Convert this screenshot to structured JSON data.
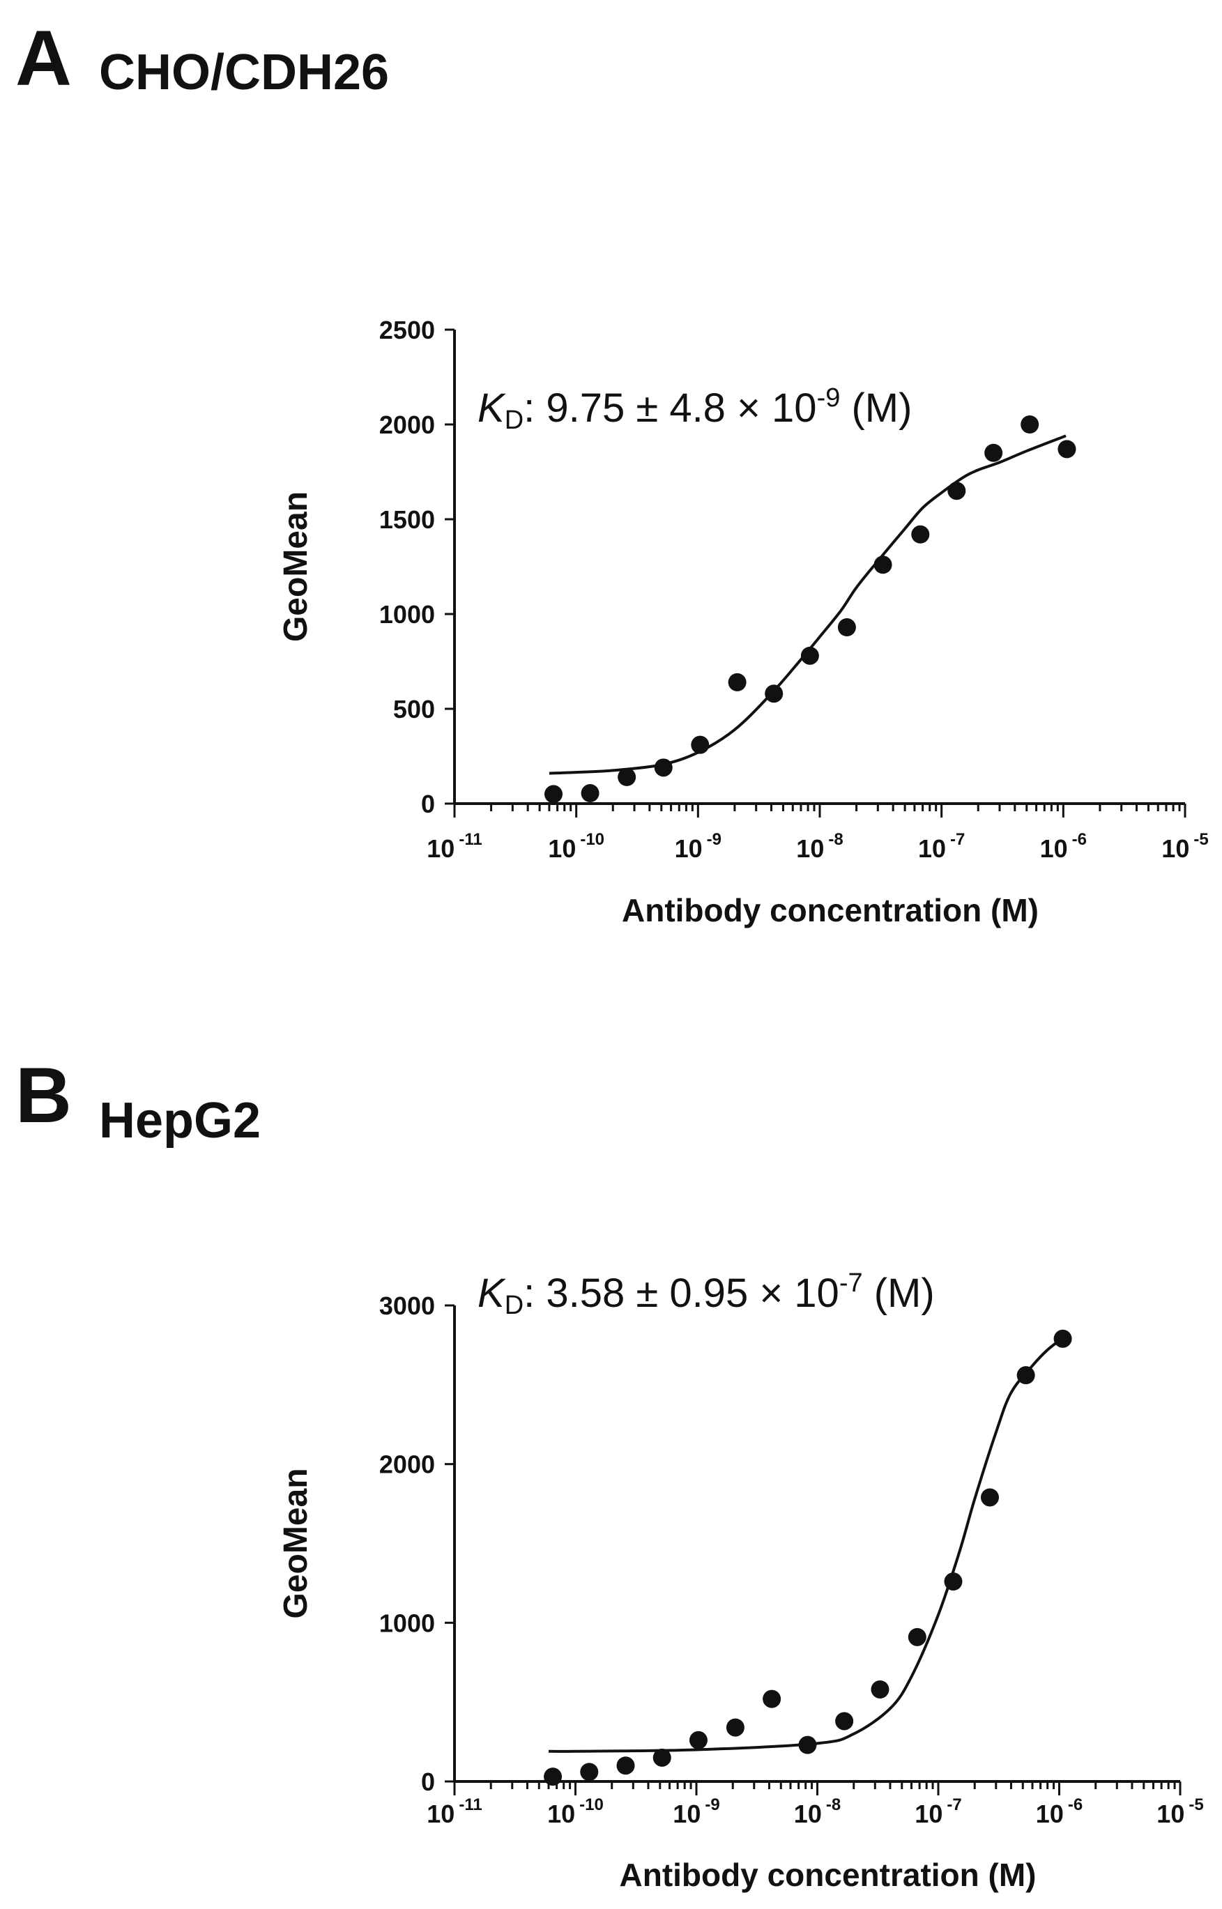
{
  "figure": {
    "panels": [
      {
        "letter": "A",
        "title": "CHO/CDH26",
        "kd": {
          "symbol": "K",
          "subscript": "D",
          "value": ": 9.75 ± 4.8 × 10",
          "exponent": "-9",
          "unit": " (M)"
        }
      },
      {
        "letter": "B",
        "title": "HepG2",
        "kd": {
          "symbol": "K",
          "subscript": "D",
          "value": ": 3.58 ± 0.95 × 10",
          "exponent": "-7",
          "unit": " (M)"
        }
      }
    ]
  },
  "chart_data": [
    {
      "type": "scatter",
      "title": "CHO/CDH26",
      "xlabel": "Antibody concentration (M)",
      "ylabel": "GeoMean",
      "xscale": "log",
      "xlim": [
        1e-11,
        1e-05
      ],
      "ylim": [
        0,
        2500
      ],
      "xticks": [
        {
          "base": "10",
          "exp": "-11"
        },
        {
          "base": "10",
          "exp": "-10"
        },
        {
          "base": "10",
          "exp": "-9"
        },
        {
          "base": "10",
          "exp": "-8"
        },
        {
          "base": "10",
          "exp": "-7"
        },
        {
          "base": "10",
          "exp": "-6"
        },
        {
          "base": "10",
          "exp": "-5"
        }
      ],
      "yticks": [
        0,
        500,
        1000,
        1500,
        2000,
        2500
      ],
      "grid": false,
      "series": [
        {
          "x": [
            6.5e-11,
            1.3e-10,
            2.6e-10,
            5.2e-10,
            1.04e-09,
            2.1e-09,
            4.2e-09,
            8.3e-09,
            1.67e-08,
            3.3e-08,
            6.7e-08,
            1.33e-07,
            2.67e-07,
            5.3e-07,
            1.07e-06
          ],
          "y": [
            50,
            55,
            140,
            190,
            310,
            640,
            580,
            780,
            930,
            1260,
            1420,
            1650,
            1850,
            2000,
            1870
          ]
        }
      ],
      "fit": {
        "x": [
          6e-11,
          1e-10,
          2e-10,
          5e-10,
          1e-09,
          2e-09,
          4e-09,
          7e-09,
          1e-08,
          1.5e-08,
          2e-08,
          3e-08,
          5e-08,
          7e-08,
          1e-07,
          1.5e-07,
          2e-07,
          3e-07,
          5e-07,
          1.05e-06
        ],
        "y": [
          160,
          165,
          175,
          205,
          270,
          390,
          580,
          760,
          880,
          1020,
          1140,
          1280,
          1450,
          1560,
          1640,
          1720,
          1760,
          1800,
          1860,
          1940
        ]
      }
    },
    {
      "type": "scatter",
      "title": "HepG2",
      "xlabel": "Antibody concentration (M)",
      "ylabel": "GeoMean",
      "xscale": "log",
      "xlim": [
        1e-11,
        1e-05
      ],
      "ylim": [
        0,
        3000
      ],
      "xticks": [
        {
          "base": "10",
          "exp": "-11"
        },
        {
          "base": "10",
          "exp": "-10"
        },
        {
          "base": "10",
          "exp": "-9"
        },
        {
          "base": "10",
          "exp": "-8"
        },
        {
          "base": "10",
          "exp": "-7"
        },
        {
          "base": "10",
          "exp": "-6"
        },
        {
          "base": "10",
          "exp": "-5"
        }
      ],
      "yticks": [
        0,
        1000,
        2000,
        3000
      ],
      "grid": false,
      "series": [
        {
          "x": [
            6.5e-11,
            1.3e-10,
            2.6e-10,
            5.2e-10,
            1.04e-09,
            2.1e-09,
            4.2e-09,
            8.3e-09,
            1.67e-08,
            3.3e-08,
            6.7e-08,
            1.33e-07,
            2.67e-07,
            5.3e-07,
            1.07e-06
          ],
          "y": [
            30,
            60,
            100,
            150,
            260,
            340,
            520,
            230,
            380,
            580,
            910,
            1260,
            1790,
            2560,
            2790
          ]
        }
      ],
      "fit": {
        "x": [
          6e-11,
          1e-10,
          1e-09,
          1e-08,
          2e-08,
          4e-08,
          6e-08,
          1e-07,
          1.5e-07,
          2e-07,
          3e-07,
          4e-07,
          6e-07,
          8e-07,
          1.05e-06
        ],
        "y": [
          190,
          190,
          200,
          240,
          300,
          460,
          660,
          1050,
          1450,
          1780,
          2200,
          2450,
          2620,
          2720,
          2790
        ]
      }
    }
  ]
}
